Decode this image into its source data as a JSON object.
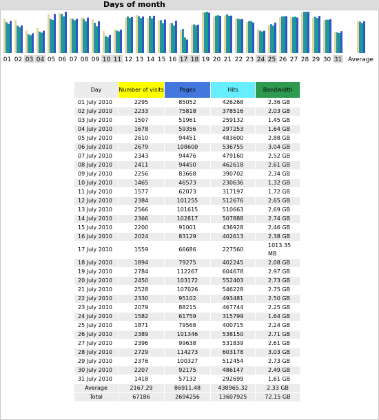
{
  "title": "Days of month",
  "colors": {
    "visits": "#ffff00",
    "pages": "#4477dd",
    "hits": "#66eeff",
    "bandwidth": "#2e9a50",
    "bar_visits": "#e0d8a0",
    "bar_pages": "#2f8fa8",
    "bar_hits": "#12a08a",
    "bar_bw": "#3355cc"
  },
  "headers": {
    "day": "Day",
    "visits": "Number of visits",
    "pages": "Pages",
    "hits": "Hits",
    "bandwidth": "Bandwidth"
  },
  "chart_data": {
    "type": "bar",
    "categories": [
      "01",
      "02",
      "03",
      "04",
      "05",
      "06",
      "07",
      "08",
      "09",
      "10",
      "11",
      "12",
      "13",
      "14",
      "15",
      "16",
      "17",
      "18",
      "19",
      "20",
      "21",
      "22",
      "23",
      "24",
      "25",
      "26",
      "27",
      "28",
      "29",
      "30",
      "31",
      "Average"
    ],
    "highlighted_categories": [
      "03",
      "04",
      "10",
      "11",
      "17",
      "18",
      "24",
      "25",
      "31"
    ],
    "series": [
      {
        "name": "Number of visits",
        "values": [
          2295,
          2233,
          1507,
          1678,
          2610,
          2679,
          2343,
          2411,
          2256,
          1465,
          1577,
          2384,
          2566,
          2366,
          2200,
          2024,
          1559,
          1894,
          2784,
          2450,
          2528,
          2330,
          2079,
          1582,
          1871,
          2389,
          2396,
          2729,
          2376,
          2207,
          1418,
          2167.29
        ]
      },
      {
        "name": "Pages",
        "values": [
          85052,
          75818,
          51961,
          59356,
          94451,
          108600,
          94476,
          94450,
          83668,
          46573,
          62073,
          101255,
          101615,
          102817,
          91001,
          83129,
          66686,
          79275,
          112267,
          103172,
          107026,
          95102,
          88215,
          61759,
          79568,
          101346,
          99638,
          114273,
          100327,
          92175,
          57132,
          86911.48
        ]
      },
      {
        "name": "Hits",
        "values": [
          426268,
          378516,
          259132,
          297253,
          483600,
          536755,
          479160,
          462618,
          390702,
          230636,
          317197,
          512676,
          510663,
          507888,
          436928,
          402613,
          227560,
          402245,
          604678,
          552403,
          546228,
          493481,
          467744,
          315799,
          400715,
          538150,
          531839,
          603178,
          512454,
          486147,
          292699,
          438965.32
        ]
      },
      {
        "name": "Bandwidth",
        "values": [
          2.36,
          2.03,
          1.45,
          1.64,
          2.88,
          3.04,
          2.52,
          2.61,
          2.34,
          1.32,
          1.72,
          2.65,
          2.69,
          2.74,
          2.46,
          2.38,
          0.99,
          2.08,
          2.97,
          2.73,
          2.75,
          2.5,
          2.25,
          1.64,
          2.24,
          2.71,
          2.61,
          3.03,
          2.73,
          2.49,
          1.61,
          2.33
        ]
      }
    ]
  },
  "rows": [
    {
      "day": "01 July 2010",
      "visits": "2295",
      "pages": "85052",
      "hits": "426268",
      "bandwidth": "2.36 GB"
    },
    {
      "day": "02 July 2010",
      "visits": "2233",
      "pages": "75818",
      "hits": "378516",
      "bandwidth": "2.03 GB"
    },
    {
      "day": "03 July 2010",
      "visits": "1507",
      "pages": "51961",
      "hits": "259132",
      "bandwidth": "1.45 GB"
    },
    {
      "day": "04 July 2010",
      "visits": "1678",
      "pages": "59356",
      "hits": "297253",
      "bandwidth": "1.64 GB"
    },
    {
      "day": "05 July 2010",
      "visits": "2610",
      "pages": "94451",
      "hits": "483600",
      "bandwidth": "2.88 GB"
    },
    {
      "day": "06 July 2010",
      "visits": "2679",
      "pages": "108600",
      "hits": "536755",
      "bandwidth": "3.04 GB"
    },
    {
      "day": "07 July 2010",
      "visits": "2343",
      "pages": "94476",
      "hits": "479160",
      "bandwidth": "2.52 GB"
    },
    {
      "day": "08 July 2010",
      "visits": "2411",
      "pages": "94450",
      "hits": "462618",
      "bandwidth": "2.61 GB"
    },
    {
      "day": "09 July 2010",
      "visits": "2256",
      "pages": "83668",
      "hits": "390702",
      "bandwidth": "2.34 GB"
    },
    {
      "day": "10 July 2010",
      "visits": "1465",
      "pages": "46573",
      "hits": "230636",
      "bandwidth": "1.32 GB"
    },
    {
      "day": "11 July 2010",
      "visits": "1577",
      "pages": "62073",
      "hits": "317197",
      "bandwidth": "1.72 GB"
    },
    {
      "day": "12 July 2010",
      "visits": "2384",
      "pages": "101255",
      "hits": "512676",
      "bandwidth": "2.65 GB"
    },
    {
      "day": "13 July 2010",
      "visits": "2566",
      "pages": "101615",
      "hits": "510663",
      "bandwidth": "2.69 GB"
    },
    {
      "day": "14 July 2010",
      "visits": "2366",
      "pages": "102817",
      "hits": "507888",
      "bandwidth": "2.74 GB"
    },
    {
      "day": "15 July 2010",
      "visits": "2200",
      "pages": "91001",
      "hits": "436928",
      "bandwidth": "2.46 GB"
    },
    {
      "day": "16 July 2010",
      "visits": "2024",
      "pages": "83129",
      "hits": "402613",
      "bandwidth": "2.38 GB"
    },
    {
      "day": "17 July 2010",
      "visits": "1559",
      "pages": "66686",
      "hits": "227560",
      "bandwidth": "1013.35 MB"
    },
    {
      "day": "18 July 2010",
      "visits": "1894",
      "pages": "79275",
      "hits": "402245",
      "bandwidth": "2.08 GB"
    },
    {
      "day": "19 July 2010",
      "visits": "2784",
      "pages": "112267",
      "hits": "604678",
      "bandwidth": "2.97 GB"
    },
    {
      "day": "20 July 2010",
      "visits": "2450",
      "pages": "103172",
      "hits": "552403",
      "bandwidth": "2.73 GB"
    },
    {
      "day": "21 July 2010",
      "visits": "2528",
      "pages": "107026",
      "hits": "546228",
      "bandwidth": "2.75 GB"
    },
    {
      "day": "22 July 2010",
      "visits": "2330",
      "pages": "95102",
      "hits": "493481",
      "bandwidth": "2.50 GB"
    },
    {
      "day": "23 July 2010",
      "visits": "2079",
      "pages": "88215",
      "hits": "467744",
      "bandwidth": "2.25 GB"
    },
    {
      "day": "24 July 2010",
      "visits": "1582",
      "pages": "61759",
      "hits": "315799",
      "bandwidth": "1.64 GB"
    },
    {
      "day": "25 July 2010",
      "visits": "1871",
      "pages": "79568",
      "hits": "400715",
      "bandwidth": "2.24 GB"
    },
    {
      "day": "26 July 2010",
      "visits": "2389",
      "pages": "101346",
      "hits": "538150",
      "bandwidth": "2.71 GB"
    },
    {
      "day": "27 July 2010",
      "visits": "2396",
      "pages": "99638",
      "hits": "531839",
      "bandwidth": "2.61 GB"
    },
    {
      "day": "28 July 2010",
      "visits": "2729",
      "pages": "114273",
      "hits": "603178",
      "bandwidth": "3.03 GB"
    },
    {
      "day": "29 July 2010",
      "visits": "2376",
      "pages": "100327",
      "hits": "512454",
      "bandwidth": "2.73 GB"
    },
    {
      "day": "30 July 2010",
      "visits": "2207",
      "pages": "92175",
      "hits": "486147",
      "bandwidth": "2.49 GB"
    },
    {
      "day": "31 July 2010",
      "visits": "1418",
      "pages": "57132",
      "hits": "292699",
      "bandwidth": "1.61 GB"
    }
  ],
  "average": {
    "label": "Average",
    "visits": "2167.29",
    "pages": "86911.48",
    "hits": "438965.32",
    "bandwidth": "2.33 GB"
  },
  "total": {
    "label": "Total",
    "visits": "67186",
    "pages": "2694256",
    "hits": "13607925",
    "bandwidth": "72.15 GB"
  }
}
